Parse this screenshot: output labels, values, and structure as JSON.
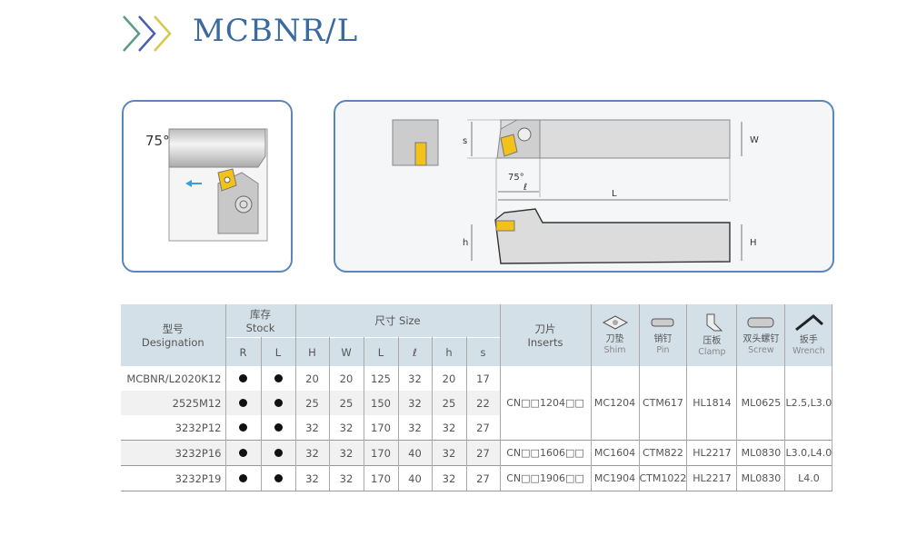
{
  "title": "MCBNR/L",
  "colors": {
    "accent": "#3a6aa0",
    "panel_border": "#5b86bd",
    "header_bg": "#d3e0e8",
    "insert": "#f2c21b",
    "arrow": "#3aa0d8"
  },
  "diagram_left": {
    "angle_label": "75°",
    "arrow_icon": "arrow-left-icon"
  },
  "diagram_right": {
    "labels": {
      "s": "s",
      "W": "W",
      "angle": "75°",
      "l": "ℓ",
      "L": "L",
      "h": "h",
      "H": "H"
    }
  },
  "table": {
    "headers": {
      "designation_cn": "型号",
      "designation_en": "Designation",
      "stock_cn": "库存",
      "stock_en": "Stock",
      "stock_cols": [
        "R",
        "L"
      ],
      "size": "尺寸 Size",
      "size_cols": [
        "H",
        "W",
        "L",
        "ℓ",
        "h",
        "s"
      ],
      "inserts_cn": "刀片",
      "inserts_en": "Inserts",
      "parts": [
        {
          "cn": "刀垫",
          "en": "Shim",
          "icon": "shim-icon"
        },
        {
          "cn": "销钉",
          "en": "Pin",
          "icon": "pin-icon"
        },
        {
          "cn": "压板",
          "en": "Clamp",
          "icon": "clamp-icon"
        },
        {
          "cn": "双头螺钉",
          "en": "Screw",
          "icon": "screw-icon"
        },
        {
          "cn": "扳手",
          "en": "Wrench",
          "icon": "wrench-icon"
        }
      ]
    },
    "rows": [
      {
        "designation": "MCBNR/L2020K12",
        "R": true,
        "L": true,
        "size": [
          "20",
          "20",
          "125",
          "32",
          "20",
          "17"
        ]
      },
      {
        "designation": "2525M12",
        "R": true,
        "L": true,
        "size": [
          "25",
          "25",
          "150",
          "32",
          "25",
          "22"
        ]
      },
      {
        "designation": "3232P12",
        "R": true,
        "L": true,
        "size": [
          "32",
          "32",
          "170",
          "32",
          "32",
          "27"
        ]
      },
      {
        "designation": "3232P16",
        "R": true,
        "L": true,
        "size": [
          "32",
          "32",
          "170",
          "40",
          "32",
          "27"
        ]
      },
      {
        "designation": "3232P19",
        "R": true,
        "L": true,
        "size": [
          "32",
          "32",
          "170",
          "40",
          "32",
          "27"
        ]
      }
    ],
    "groups": [
      {
        "insert": "CN□□1204□□",
        "shim": "MC1204",
        "pin": "CTM617",
        "clamp": "HL1814",
        "screw": "ML0625",
        "wrench": "L2.5,L3.0"
      },
      {
        "insert": "CN□□1606□□",
        "shim": "MC1604",
        "pin": "CTM822",
        "clamp": "HL2217",
        "screw": "ML0830",
        "wrench": "L3.0,L4.0"
      },
      {
        "insert": "CN□□1906□□",
        "shim": "MC1904",
        "pin": "CTM1022",
        "clamp": "HL2217",
        "screw": "ML0830",
        "wrench": "L4.0"
      }
    ]
  }
}
